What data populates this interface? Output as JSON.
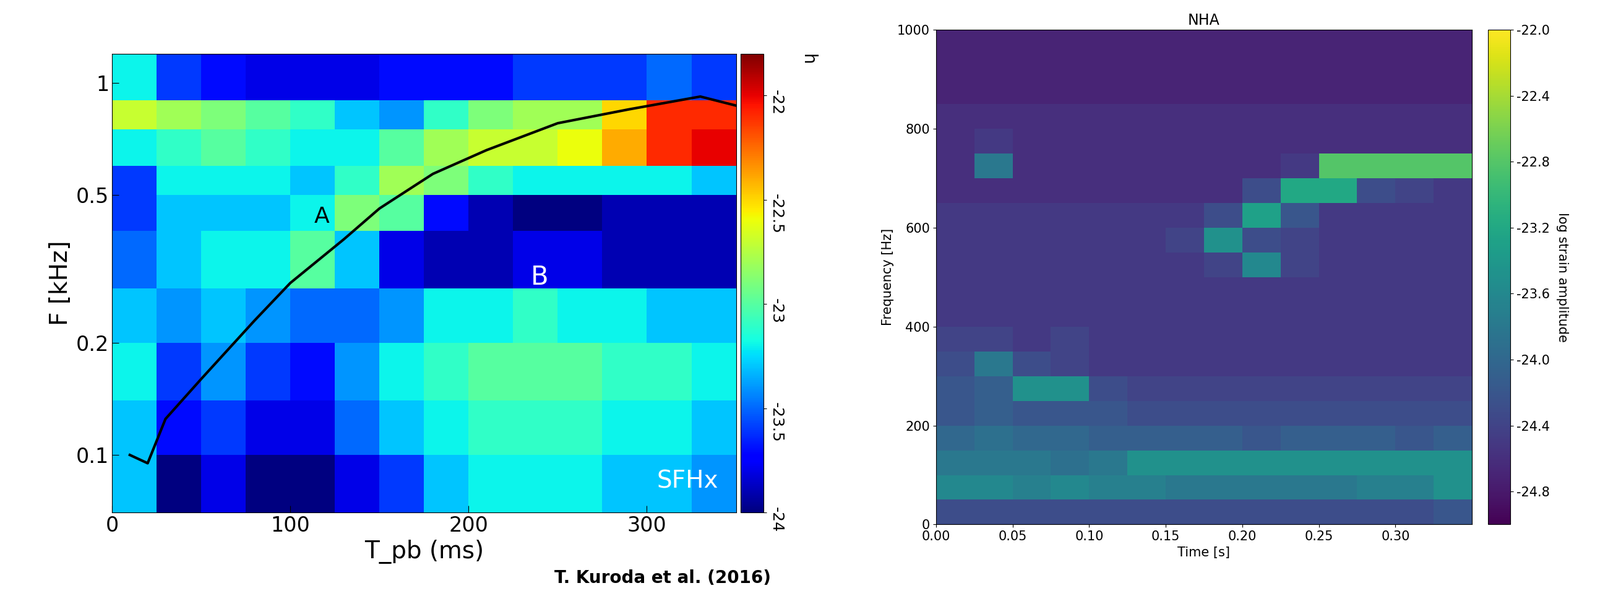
{
  "chart_data": [
    {
      "type": "heatmap",
      "x_label": "T_pb (ms)",
      "y_label": "F [kHz]",
      "xlim": [
        0,
        350
      ],
      "ylim": [
        0.07,
        1.2
      ],
      "log": "y",
      "xticks": [
        0,
        100,
        200,
        300
      ],
      "yticks": [
        0.1,
        0.2,
        0.5,
        1
      ],
      "x_edges": [
        0,
        25,
        50,
        75,
        100,
        125,
        150,
        175,
        200,
        225,
        250,
        275,
        300,
        325,
        350
      ],
      "y_edges": [
        0.07,
        0.1,
        0.14,
        0.2,
        0.28,
        0.4,
        0.5,
        0.6,
        0.75,
        0.9,
        1.2
      ],
      "cells": [
        [
          -23.3,
          -24.0,
          -23.8,
          -24.0,
          -24.0,
          -23.8,
          -23.6,
          -23.3,
          -23.2,
          -23.2,
          -23.2,
          -23.3,
          -23.3,
          -23.4
        ],
        [
          -23.3,
          -23.7,
          -23.6,
          -23.8,
          -23.8,
          -23.5,
          -23.3,
          -23.2,
          -23.1,
          -23.1,
          -23.1,
          -23.2,
          -23.2,
          -23.3
        ],
        [
          -23.2,
          -23.6,
          -23.4,
          -23.6,
          -23.7,
          -23.4,
          -23.2,
          -23.1,
          -23.0,
          -23.0,
          -23.0,
          -23.1,
          -23.1,
          -23.2
        ],
        [
          -23.3,
          -23.4,
          -23.3,
          -23.4,
          -23.5,
          -23.5,
          -23.4,
          -23.2,
          -23.2,
          -23.1,
          -23.2,
          -23.2,
          -23.3,
          -23.3
        ],
        [
          -23.5,
          -23.3,
          -23.2,
          -23.2,
          -23.0,
          -23.3,
          -23.8,
          -23.9,
          -23.9,
          -23.8,
          -23.8,
          -23.9,
          -23.9,
          -23.9
        ],
        [
          -23.6,
          -23.3,
          -23.3,
          -23.3,
          -23.2,
          -22.9,
          -23.0,
          -23.7,
          -23.9,
          -24.0,
          -24.0,
          -23.9,
          -23.9,
          -23.9
        ],
        [
          -23.6,
          -23.2,
          -23.2,
          -23.2,
          -23.3,
          -23.1,
          -22.8,
          -22.9,
          -23.1,
          -23.2,
          -23.2,
          -23.2,
          -23.2,
          -23.3
        ],
        [
          -23.2,
          -23.1,
          -23.0,
          -23.1,
          -23.2,
          -23.2,
          -23.0,
          -22.8,
          -22.7,
          -22.7,
          -22.6,
          -22.4,
          -22.1,
          -22.0
        ],
        [
          -22.7,
          -22.8,
          -22.9,
          -23.0,
          -23.1,
          -23.3,
          -23.4,
          -23.1,
          -22.9,
          -22.8,
          -22.8,
          -22.5,
          -22.1,
          -22.1
        ],
        [
          -23.2,
          -23.6,
          -23.7,
          -23.8,
          -23.8,
          -23.8,
          -23.7,
          -23.7,
          -23.7,
          -23.6,
          -23.6,
          -23.6,
          -23.5,
          -23.6
        ]
      ],
      "colorbar": {
        "range": [
          -24,
          -21.8
        ],
        "ticks": [
          -22,
          -22.5,
          -23,
          -23.5,
          -24
        ],
        "label": "h"
      },
      "series": [
        {
          "name": "A",
          "color": "black",
          "x": [
            10,
            20,
            30,
            50,
            80,
            100,
            130,
            150,
            180,
            210,
            250,
            290,
            330,
            350
          ],
          "values": [
            0.1,
            0.095,
            0.125,
            0.16,
            0.23,
            0.29,
            0.38,
            0.46,
            0.57,
            0.66,
            0.78,
            0.85,
            0.92,
            0.87
          ]
        }
      ],
      "annotations": [
        "B",
        "SFHx",
        "T. Kuroda et al. (2016)"
      ]
    },
    {
      "type": "heatmap",
      "title": "NHA",
      "x_label": "Time [s]",
      "y_label": "Frequency [Hz]",
      "xlim": [
        0,
        0.35
      ],
      "ylim": [
        0,
        1000
      ],
      "xticks": [
        {
          "value": 0,
          "label": "0.00"
        },
        {
          "value": 0.05,
          "label": "0.05"
        },
        {
          "value": 0.1,
          "label": "0.10"
        },
        {
          "value": 0.15,
          "label": "0.15"
        },
        {
          "value": 0.2,
          "label": "0.20"
        },
        {
          "value": 0.25,
          "label": "0.25"
        },
        {
          "value": 0.3,
          "label": "0.30"
        }
      ],
      "yticks": [
        0,
        200,
        400,
        600,
        800,
        1000
      ],
      "x_edges": [
        0,
        0.025,
        0.05,
        0.075,
        0.1,
        0.125,
        0.15,
        0.175,
        0.2,
        0.225,
        0.25,
        0.275,
        0.3,
        0.325,
        0.35
      ],
      "y_edges": [
        0,
        50,
        100,
        150,
        200,
        250,
        300,
        350,
        400,
        450,
        500,
        550,
        600,
        650,
        700,
        750,
        800,
        850,
        900,
        950,
        1000
      ],
      "cells": [
        [
          -24.3,
          -24.3,
          -24.3,
          -24.3,
          -24.3,
          -24.3,
          -24.3,
          -24.3,
          -24.3,
          -24.3,
          -24.3,
          -24.3,
          -24.3,
          -24.2
        ],
        [
          -23.6,
          -23.6,
          -23.7,
          -23.6,
          -23.7,
          -23.7,
          -23.8,
          -23.8,
          -23.8,
          -23.8,
          -23.8,
          -23.7,
          -23.7,
          -23.5
        ],
        [
          -23.8,
          -23.8,
          -23.8,
          -23.9,
          -23.8,
          -23.5,
          -23.5,
          -23.5,
          -23.5,
          -23.5,
          -23.5,
          -23.5,
          -23.5,
          -23.5
        ],
        [
          -24.0,
          -23.9,
          -24.0,
          -24.0,
          -24.1,
          -24.1,
          -24.1,
          -24.1,
          -24.2,
          -24.1,
          -24.1,
          -24.1,
          -24.2,
          -24.1
        ],
        [
          -24.2,
          -24.1,
          -24.2,
          -24.2,
          -24.2,
          -24.3,
          -24.3,
          -24.3,
          -24.3,
          -24.3,
          -24.3,
          -24.3,
          -24.3,
          -24.3
        ],
        [
          -24.2,
          -24.1,
          -23.5,
          -23.5,
          -24.3,
          -24.4,
          -24.4,
          -24.4,
          -24.4,
          -24.4,
          -24.4,
          -24.4,
          -24.4,
          -24.4
        ],
        [
          -24.3,
          -23.8,
          -24.3,
          -24.4,
          -24.5,
          -24.5,
          -24.5,
          -24.5,
          -24.5,
          -24.5,
          -24.5,
          -24.5,
          -24.5,
          -24.5
        ],
        [
          -24.4,
          -24.4,
          -24.5,
          -24.4,
          -24.5,
          -24.5,
          -24.5,
          -24.5,
          -24.5,
          -24.5,
          -24.5,
          -24.5,
          -24.5,
          -24.5
        ],
        [
          -24.5,
          -24.5,
          -24.5,
          -24.5,
          -24.5,
          -24.5,
          -24.5,
          -24.5,
          -24.5,
          -24.5,
          -24.5,
          -24.5,
          -24.5,
          -24.5
        ],
        [
          -24.5,
          -24.5,
          -24.5,
          -24.5,
          -24.5,
          -24.5,
          -24.5,
          -24.5,
          -24.5,
          -24.5,
          -24.5,
          -24.5,
          -24.5,
          -24.5
        ],
        [
          -24.5,
          -24.5,
          -24.5,
          -24.5,
          -24.5,
          -24.5,
          -24.5,
          -24.4,
          -23.6,
          -24.4,
          -24.5,
          -24.5,
          -24.5,
          -24.5
        ],
        [
          -24.5,
          -24.5,
          -24.5,
          -24.5,
          -24.5,
          -24.5,
          -24.4,
          -23.5,
          -24.3,
          -24.4,
          -24.5,
          -24.5,
          -24.5,
          -24.5
        ],
        [
          -24.5,
          -24.5,
          -24.5,
          -24.5,
          -24.5,
          -24.5,
          -24.5,
          -24.3,
          -23.3,
          -24.2,
          -24.5,
          -24.5,
          -24.5,
          -24.5
        ],
        [
          -24.6,
          -24.6,
          -24.6,
          -24.6,
          -24.6,
          -24.6,
          -24.6,
          -24.6,
          -24.3,
          -23.2,
          -23.2,
          -24.3,
          -24.4,
          -24.5
        ],
        [
          -24.6,
          -23.8,
          -24.6,
          -24.6,
          -24.6,
          -24.6,
          -24.6,
          -24.6,
          -24.6,
          -24.5,
          -22.8,
          -22.8,
          -22.8,
          -22.8
        ],
        [
          -24.6,
          -24.5,
          -24.6,
          -24.6,
          -24.6,
          -24.6,
          -24.6,
          -24.6,
          -24.6,
          -24.6,
          -24.6,
          -24.6,
          -24.6,
          -24.6
        ],
        [
          -24.6,
          -24.6,
          -24.6,
          -24.6,
          -24.6,
          -24.6,
          -24.6,
          -24.6,
          -24.6,
          -24.6,
          -24.6,
          -24.6,
          -24.6,
          -24.6
        ],
        [
          -24.7,
          -24.7,
          -24.7,
          -24.7,
          -24.7,
          -24.7,
          -24.7,
          -24.7,
          -24.7,
          -24.7,
          -24.7,
          -24.7,
          -24.7,
          -24.7
        ],
        [
          -24.7,
          -24.7,
          -24.7,
          -24.7,
          -24.7,
          -24.7,
          -24.7,
          -24.7,
          -24.7,
          -24.7,
          -24.7,
          -24.7,
          -24.7,
          -24.7
        ],
        [
          -24.7,
          -24.7,
          -24.7,
          -24.7,
          -24.7,
          -24.7,
          -24.7,
          -24.7,
          -24.7,
          -24.7,
          -24.7,
          -24.7,
          -24.7,
          -24.7
        ]
      ],
      "colorbar": {
        "range": [
          -25,
          -22
        ],
        "ticks": [
          -22.0,
          -22.4,
          -22.8,
          -23.2,
          -23.6,
          -24.0,
          -24.4,
          -24.8
        ],
        "label": "log strain amplitude"
      }
    }
  ]
}
